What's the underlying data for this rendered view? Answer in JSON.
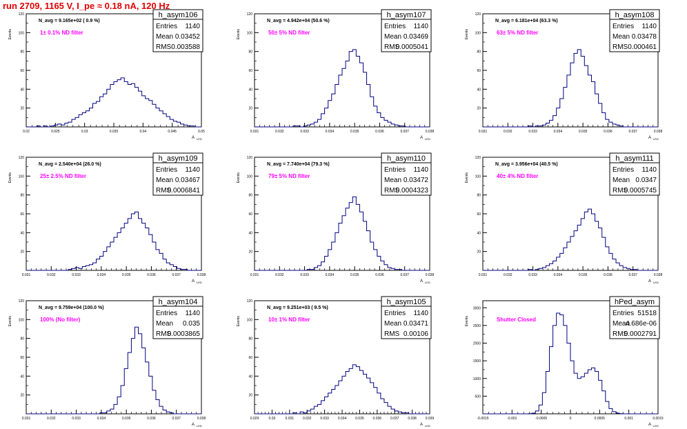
{
  "page": {
    "title": "run 2709,  1165 V, I_pe ≈ 0.18 nA, 120 Hz"
  },
  "style": {
    "histogram_color": "#000080",
    "nfilter_color": "#ff00ff",
    "title_color": "#e00000"
  },
  "chart_data": [
    {
      "type": "bar",
      "name": "h_asym106",
      "stats": {
        "Entries": "1140",
        "Mean": "0.03452",
        "RMS": "0.003588"
      },
      "navg": "N_avg = 9.165e+02 ( 0.9 %)",
      "filter": "1± 0.1% ND filter",
      "ylabel": "Events",
      "xlabel": "A",
      "xlim": [
        0.02,
        0.05
      ],
      "ylim": [
        0,
        120
      ],
      "xticks": [
        0.02,
        0.025,
        0.03,
        0.035,
        0.04,
        0.045,
        0.05
      ],
      "xticklabels": [
        "0.02",
        "0.025",
        "0.03",
        "0.035",
        "0.04",
        "0.045",
        "0.05"
      ],
      "yticks": [
        20,
        40,
        60,
        80,
        100,
        120
      ],
      "yticklabels": [
        "20",
        "40",
        "60",
        "80",
        "100",
        "120"
      ],
      "bins": {
        "x0": 0.02,
        "dx": 0.0006,
        "values": [
          0,
          0,
          0,
          1,
          0,
          1,
          0,
          1,
          2,
          3,
          2,
          4,
          5,
          8,
          10,
          13,
          15,
          17,
          20,
          25,
          27,
          32,
          35,
          40,
          45,
          48,
          50,
          52,
          48,
          45,
          46,
          42,
          38,
          33,
          30,
          28,
          24,
          20,
          17,
          14,
          11,
          8,
          6,
          5,
          3,
          2,
          1,
          1,
          0,
          0
        ]
      }
    },
    {
      "type": "bar",
      "name": "h_asym107",
      "stats": {
        "Entries": "1140",
        "Mean": "0.03469",
        "RMS": "0.0005041"
      },
      "navg": "N_avg = 4.942e+04 (50.6 %)",
      "filter": "50± 5% ND filter",
      "ylabel": "Events",
      "xlabel": "A",
      "xlim": [
        0.031,
        0.038
      ],
      "ylim": [
        0,
        120
      ],
      "xticks": [
        0.031,
        0.032,
        0.033,
        0.034,
        0.035,
        0.036,
        0.037,
        0.038
      ],
      "xticklabels": [
        "0.031",
        "0.032",
        "0.033",
        "0.034",
        "0.035",
        "0.036",
        "0.037",
        "0.038"
      ],
      "yticks": [
        20,
        40,
        60,
        80,
        100,
        120
      ],
      "yticklabels": [
        "20",
        "40",
        "60",
        "80",
        "100",
        "120"
      ],
      "bins": {
        "x0": 0.031,
        "dx": 0.00014,
        "values": [
          0,
          0,
          0,
          0,
          0,
          0,
          0,
          0,
          0,
          0,
          0,
          1,
          1,
          0,
          1,
          2,
          3,
          5,
          8,
          14,
          20,
          28,
          35,
          45,
          55,
          62,
          70,
          80,
          82,
          75,
          68,
          58,
          45,
          32,
          22,
          15,
          10,
          7,
          5,
          3,
          2,
          1,
          1,
          0,
          0,
          0,
          0,
          0,
          0,
          0
        ]
      }
    },
    {
      "type": "bar",
      "name": "h_asym108",
      "stats": {
        "Entries": "1140",
        "Mean": "0.03478",
        "RMS": "0.000461"
      },
      "navg": "N_avg = 6.181e+04 (63.3 %)",
      "filter": "63± 5% ND filter",
      "ylabel": "Events",
      "xlabel": "A",
      "xlim": [
        0.031,
        0.038
      ],
      "ylim": [
        0,
        120
      ],
      "xticks": [
        0.031,
        0.032,
        0.033,
        0.034,
        0.035,
        0.036,
        0.037,
        0.038
      ],
      "xticklabels": [
        "0.031",
        "0.032",
        "0.033",
        "0.034",
        "0.035",
        "0.036",
        "0.037",
        "0.038"
      ],
      "yticks": [
        20,
        40,
        60,
        80,
        100,
        120
      ],
      "yticklabels": [
        "20",
        "40",
        "60",
        "80",
        "100",
        "120"
      ],
      "bins": {
        "x0": 0.031,
        "dx": 0.00014,
        "values": [
          0,
          0,
          0,
          0,
          0,
          0,
          0,
          0,
          0,
          0,
          0,
          0,
          0,
          1,
          0,
          1,
          1,
          2,
          4,
          7,
          12,
          20,
          30,
          42,
          55,
          68,
          78,
          82,
          75,
          65,
          55,
          48,
          35,
          25,
          15,
          8,
          5,
          3,
          2,
          1,
          0,
          0,
          0,
          0,
          0,
          0,
          0,
          0,
          0,
          0
        ]
      }
    },
    {
      "type": "bar",
      "name": "h_asym109",
      "stats": {
        "Entries": "1140",
        "Mean": "0.03467",
        "RMS": "0.0006841"
      },
      "navg": "N_avg = 2.540e+04 (26.0 %)",
      "filter": "25± 2.5% ND filter",
      "ylabel": "Events",
      "xlabel": "A",
      "xlim": [
        0.031,
        0.038
      ],
      "ylim": [
        0,
        120
      ],
      "xticks": [
        0.031,
        0.032,
        0.033,
        0.034,
        0.035,
        0.036,
        0.037,
        0.038
      ],
      "xticklabels": [
        "0.031",
        "0.032",
        "0.033",
        "0.034",
        "0.035",
        "0.036",
        "0.037",
        "0.038"
      ],
      "yticks": [
        20,
        40,
        60,
        80,
        100,
        120
      ],
      "yticklabels": [
        "20",
        "40",
        "60",
        "80",
        "100",
        "120"
      ],
      "bins": {
        "x0": 0.031,
        "dx": 0.00014,
        "values": [
          0,
          0,
          0,
          0,
          0,
          0,
          0,
          0,
          0,
          0,
          0,
          0,
          1,
          2,
          3,
          2,
          4,
          5,
          6,
          8,
          12,
          15,
          20,
          25,
          30,
          35,
          40,
          45,
          50,
          55,
          60,
          62,
          55,
          50,
          45,
          38,
          30,
          22,
          18,
          12,
          8,
          6,
          4,
          2,
          1,
          1,
          0,
          0,
          0,
          0
        ]
      }
    },
    {
      "type": "bar",
      "name": "h_asym110",
      "stats": {
        "Entries": "1140",
        "Mean": "0.03472",
        "RMS": "0.0004323"
      },
      "navg": "N_avg = 7.740e+04 (79.3 %)",
      "filter": "79± 5% ND filter",
      "ylabel": "Events",
      "xlabel": "A",
      "xlim": [
        0.031,
        0.038
      ],
      "ylim": [
        0,
        120
      ],
      "xticks": [
        0.031,
        0.032,
        0.033,
        0.034,
        0.035,
        0.036,
        0.037,
        0.038
      ],
      "xticklabels": [
        "0.031",
        "0.032",
        "0.033",
        "0.034",
        "0.035",
        "0.036",
        "0.037",
        "0.038"
      ],
      "yticks": [
        20,
        40,
        60,
        80,
        100,
        120
      ],
      "yticklabels": [
        "20",
        "40",
        "60",
        "80",
        "100",
        "120"
      ],
      "bins": {
        "x0": 0.031,
        "dx": 0.00014,
        "values": [
          0,
          0,
          0,
          0,
          0,
          0,
          0,
          0,
          0,
          0,
          0,
          0,
          0,
          0,
          0,
          1,
          1,
          3,
          5,
          9,
          15,
          22,
          30,
          40,
          50,
          58,
          66,
          72,
          78,
          70,
          62,
          52,
          42,
          30,
          22,
          15,
          10,
          6,
          3,
          2,
          1,
          1,
          0,
          0,
          0,
          0,
          0,
          0,
          0,
          0
        ]
      }
    },
    {
      "type": "bar",
      "name": "h_asym111",
      "stats": {
        "Entries": "1140",
        "Mean": "0.0347",
        "RMS": "0.0005745"
      },
      "navg": "N_avg = 3.956e+04 (40.5 %)",
      "filter": "40± 4% ND filter",
      "ylabel": "Events",
      "xlabel": "A",
      "xlim": [
        0.031,
        0.038
      ],
      "ylim": [
        0,
        120
      ],
      "xticks": [
        0.031,
        0.032,
        0.033,
        0.034,
        0.035,
        0.036,
        0.037,
        0.038
      ],
      "xticklabels": [
        "0.031",
        "0.032",
        "0.033",
        "0.034",
        "0.035",
        "0.036",
        "0.037",
        "0.038"
      ],
      "yticks": [
        20,
        40,
        60,
        80,
        100,
        120
      ],
      "yticklabels": [
        "20",
        "40",
        "60",
        "80",
        "100",
        "120"
      ],
      "bins": {
        "x0": 0.031,
        "dx": 0.00014,
        "values": [
          0,
          0,
          0,
          0,
          0,
          0,
          0,
          0,
          0,
          0,
          0,
          0,
          0,
          1,
          0,
          1,
          2,
          3,
          5,
          7,
          10,
          14,
          18,
          24,
          30,
          36,
          42,
          48,
          55,
          62,
          65,
          60,
          52,
          45,
          35,
          25,
          18,
          12,
          8,
          5,
          3,
          2,
          1,
          1,
          0,
          0,
          0,
          0,
          0,
          0
        ]
      }
    },
    {
      "type": "bar",
      "name": "h_asym104",
      "stats": {
        "Entries": "1140",
        "Mean": "0.035",
        "RMS": "0.0003865"
      },
      "navg": "N_avg = 9.759e+04 (100.0 %)",
      "filter": "100% (No filter)",
      "ylabel": "Events",
      "xlabel": "A",
      "xlim": [
        0.031,
        0.038
      ],
      "ylim": [
        0,
        120
      ],
      "xticks": [
        0.031,
        0.032,
        0.033,
        0.034,
        0.035,
        0.036,
        0.037,
        0.038
      ],
      "xticklabels": [
        "0.031",
        "0.032",
        "0.033",
        "0.034",
        "0.035",
        "0.036",
        "0.037",
        "0.038"
      ],
      "yticks": [
        20,
        40,
        60,
        80,
        100,
        120
      ],
      "yticklabels": [
        "20",
        "40",
        "60",
        "80",
        "100",
        "120"
      ],
      "bins": {
        "x0": 0.031,
        "dx": 0.00014,
        "values": [
          0,
          0,
          0,
          0,
          0,
          0,
          0,
          0,
          0,
          0,
          0,
          0,
          0,
          0,
          0,
          0,
          0,
          0,
          0,
          0,
          0,
          1,
          1,
          3,
          5,
          10,
          18,
          30,
          48,
          65,
          80,
          92,
          85,
          70,
          55,
          40,
          25,
          15,
          8,
          4,
          2,
          1,
          0,
          0,
          0,
          0,
          0,
          0,
          0,
          0
        ]
      }
    },
    {
      "type": "bar",
      "name": "h_asym105",
      "stats": {
        "Entries": "1140",
        "Mean": "0.03471",
        "RMS": "0.00106"
      },
      "navg": "N_avg = 9.251e+03 ( 9.5 %)",
      "filter": "10± 1% ND filter",
      "ylabel": "Events",
      "xlabel": "A",
      "xlim": [
        0.029,
        0.039
      ],
      "ylim": [
        0,
        120
      ],
      "xticks": [
        0.029,
        0.03,
        0.031,
        0.032,
        0.033,
        0.034,
        0.035,
        0.036,
        0.037,
        0.038,
        0.039
      ],
      "xticklabels": [
        "0.029",
        "0.03",
        "0.031",
        "0.032",
        "0.033",
        "0.034",
        "0.035",
        "0.036",
        "0.037",
        "0.038",
        "0.039"
      ],
      "yticks": [
        20,
        40,
        60,
        80,
        100,
        120
      ],
      "yticklabels": [
        "20",
        "40",
        "60",
        "80",
        "100",
        "120"
      ],
      "bins": {
        "x0": 0.029,
        "dx": 0.0002,
        "values": [
          0,
          0,
          0,
          0,
          0,
          0,
          0,
          0,
          0,
          0,
          0,
          1,
          0,
          2,
          1,
          3,
          5,
          8,
          10,
          14,
          18,
          22,
          26,
          30,
          35,
          40,
          45,
          48,
          52,
          50,
          46,
          42,
          38,
          33,
          28,
          22,
          16,
          12,
          8,
          5,
          3,
          2,
          1,
          1,
          0,
          0,
          0,
          0,
          0,
          0
        ]
      }
    },
    {
      "type": "bar",
      "name": "hPed_asym",
      "stats": {
        "Entries": "51518",
        "Mean": "4.686e-06",
        "RMS": "0.0002791"
      },
      "filter": "Shutter Closed",
      "ylabel": "Events",
      "xlabel": "A",
      "xlim": [
        -0.0015,
        0.0015
      ],
      "ylim": [
        0,
        3200
      ],
      "xticks": [
        -0.0015,
        -0.001,
        -0.0005,
        0,
        0.0005,
        0.001,
        0.0015
      ],
      "xticklabels": [
        "-0.0015",
        "-0.001",
        "-0.0005",
        "0",
        "0.0005",
        "0.001",
        "0.0015"
      ],
      "yticks": [
        500,
        1000,
        1500,
        2000,
        2500,
        3000
      ],
      "yticklabels": [
        "500",
        "1000",
        "1500",
        "2000",
        "2500",
        "3000"
      ],
      "bins": {
        "x0": -0.0015,
        "dx": 6e-05,
        "values": [
          0,
          0,
          0,
          0,
          0,
          0,
          0,
          0,
          0,
          0,
          0,
          0,
          0,
          5,
          20,
          80,
          250,
          600,
          1200,
          1900,
          2500,
          2850,
          2800,
          2500,
          2000,
          1500,
          1150,
          1000,
          1050,
          1150,
          1250,
          1300,
          1200,
          950,
          650,
          350,
          150,
          60,
          20,
          5,
          0,
          0,
          0,
          0,
          0,
          0,
          0,
          0,
          0,
          0
        ]
      }
    }
  ]
}
